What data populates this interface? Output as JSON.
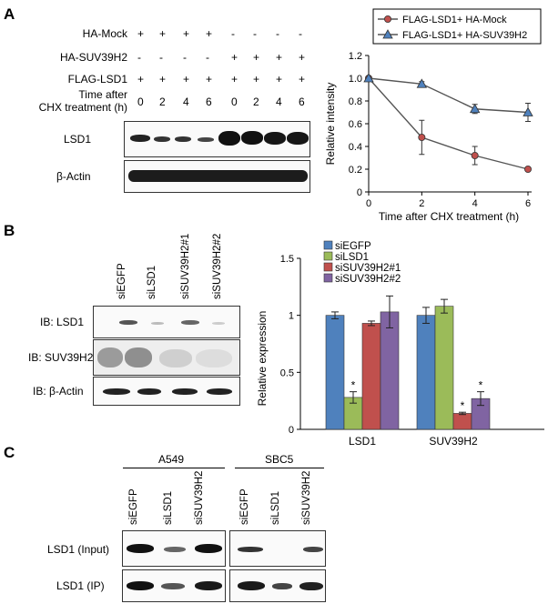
{
  "panels": {
    "a": "A",
    "b": "B",
    "c": "C"
  },
  "panelA": {
    "rows": [
      {
        "label": "HA-Mock",
        "values": [
          "+",
          "+",
          "+",
          "+",
          "-",
          "-",
          "-",
          "-"
        ]
      },
      {
        "label": "HA-SUV39H2",
        "values": [
          "-",
          "-",
          "-",
          "-",
          "+",
          "+",
          "+",
          "+"
        ]
      },
      {
        "label": "FLAG-LSD1",
        "values": [
          "+",
          "+",
          "+",
          "+",
          "+",
          "+",
          "+",
          "+"
        ]
      }
    ],
    "time_label_1": "Time after",
    "time_label_2": "CHX  treatment (h)",
    "time_values": [
      "0",
      "2",
      "4",
      "6",
      "0",
      "2",
      "4",
      "6"
    ],
    "blot_labels": {
      "lsd1": "LSD1",
      "actin": "β-Actin"
    }
  },
  "panelB": {
    "lanes": [
      "siEGFP",
      "siLSD1",
      "siSUV39H2#1",
      "siSUV39H2#2"
    ],
    "blot_labels": {
      "lsd1": "IB: LSD1",
      "suv": "IB: SUV39H2",
      "actin": "IB: β-Actin"
    }
  },
  "panelC": {
    "groups": [
      "A549",
      "SBC5"
    ],
    "lanes": [
      "siEGFP",
      "siLSD1",
      "siSUV39H2",
      "siEGFP",
      "siLSD1",
      "siSUV39H2"
    ],
    "blot_labels": {
      "input": "LSD1 (Input)",
      "ip": "LSD1 (IP)"
    }
  },
  "colors": {
    "mock": "#c0504d",
    "suv": "#4f81bd",
    "siEGFP": "#4f81bd",
    "siLSD1": "#9bbb59",
    "siSUV1": "#c0504d",
    "siSUV2": "#8064a2"
  },
  "chart_data": [
    {
      "type": "line",
      "xlabel": "Time after CHX  treatment (h)",
      "ylabel": "Relative intensity",
      "x": [
        0,
        2,
        4,
        6
      ],
      "xticks": [
        "0",
        "2",
        "4",
        "6"
      ],
      "yticks": [
        "0",
        "0.2",
        "0.4",
        "0.6",
        "0.8",
        "1.0",
        "1.2"
      ],
      "xlim": [
        0,
        6
      ],
      "ylim": [
        0,
        1.2
      ],
      "legend_position": "top",
      "series": [
        {
          "name": "FLAG-LSD1+ HA-Mock",
          "values": [
            1.0,
            0.48,
            0.32,
            0.2
          ],
          "errors": [
            0,
            0.15,
            0.08,
            0
          ],
          "marker": "circle"
        },
        {
          "name": "FLAG-LSD1+ HA-SUV39H2",
          "values": [
            1.0,
            0.95,
            0.73,
            0.7
          ],
          "errors": [
            0,
            0.02,
            0.04,
            0.08
          ],
          "marker": "triangle"
        }
      ]
    },
    {
      "type": "bar",
      "ylabel": "Relative  expression",
      "categories": [
        "LSD1",
        "SUV39H2"
      ],
      "yticks": [
        "0",
        "0.5",
        "1",
        "1.5"
      ],
      "ylim": [
        0,
        1.5
      ],
      "legend_position": "top-left",
      "annotation": "*",
      "series": [
        {
          "name": "siEGFP",
          "values": [
            1.0,
            1.0
          ],
          "errors": [
            0.03,
            0.07
          ]
        },
        {
          "name": "siLSD1",
          "values": [
            0.28,
            1.08
          ],
          "errors": [
            0.05,
            0.06
          ]
        },
        {
          "name": "siSUV39H2#1",
          "values": [
            0.93,
            0.14
          ],
          "errors": [
            0.02,
            0.01
          ]
        },
        {
          "name": "siSUV39H2#2",
          "values": [
            1.03,
            0.27
          ],
          "errors": [
            0.14,
            0.06
          ]
        }
      ],
      "significant": [
        [
          0,
          1
        ],
        [
          1,
          2
        ],
        [
          1,
          3
        ]
      ]
    }
  ]
}
